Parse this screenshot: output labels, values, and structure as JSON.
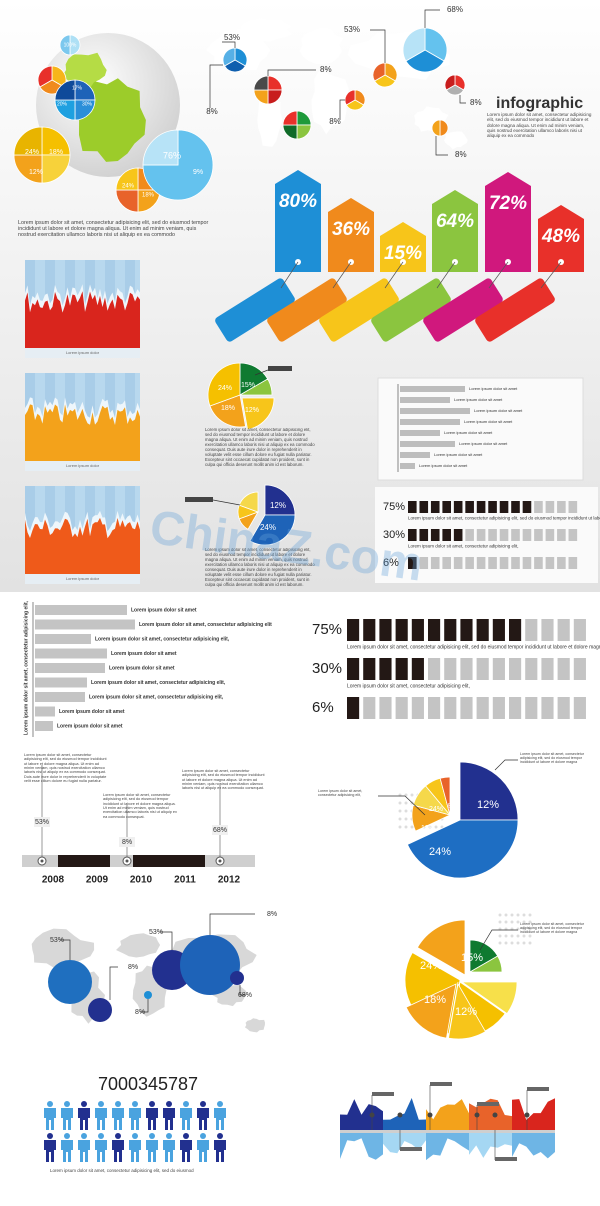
{
  "header": {
    "title": "infographic",
    "text": "Lorem ipsum dolor sit amet, consectetur adipisicing elit, sed do eiusmod tempor incididunt ut labore et dolore magna aliqua. Ut enim ad minim veniam, quis nostrud exercitation ullamco laboris nisi ut aliquip ex ea commodo"
  },
  "globe": {
    "labels": [
      "100%",
      "17%",
      "30%",
      "20%",
      "24%",
      "18%",
      "12%",
      "24%",
      "18%",
      "76%",
      "9%"
    ]
  },
  "map_top": {
    "labels": [
      "53%",
      "8%",
      "8%",
      "53%",
      "8%",
      "68%",
      "8%",
      "8%"
    ]
  },
  "tags": [
    "80%",
    "36%",
    "15%",
    "64%",
    "72%",
    "48%"
  ],
  "intro_text": "Lorem ipsum dolor sit amet, consectetur adipisicing elit, sed do eiusmod tempor incididunt ut labore et dolore magna aliqua. Ut enim ad minim veniam, quis nostrud exercitation ullamco laboris nisi ut aliquip ex ea commodo",
  "area_captions": [
    "Lorem ipsum dolor",
    "Lorem ipsum dolor",
    "Lorem ipsum dolor"
  ],
  "pie_mid": {
    "labels": [
      "24%",
      "15%",
      "18%",
      "12%"
    ],
    "text": "Lorem ipsum dolor sit amet, consectetur adipisicing elit, sed do eiusmod tempor incididunt ut labore et dolore magna aliqua. Ut enim ad minim veniam, quis nostrud exercitation ullamco laboris nisi ut aliquip ex ea commodo consequat. Duis aute irure dolor in reprehenderit in voluptate velit esse cillum dolore eu fugiat nulla pariatur. Excepteur sint occaecat cupidatat non proident, sunt in culpa qui officia deserunt mollit anim id est laborum."
  },
  "pie_mid2": {
    "labels": [
      "12%",
      "24%"
    ],
    "text": "Lorem ipsum dolor sit amet, consectetur adipisicing elit, sed do eiusmod tempor incididunt ut labore et dolore magna aliqua. Ut enim ad minim veniam, quis nostrud exercitation ullamco laboris nisi ut aliquip ex ea commodo consequat. Duis aute irure dolor in reprehenderit in voluptate velit esse cillum dolore eu fugiat nulla pariatur. Excepteur sint occaecat cupidatat non proident, sunt in culpa qui officia deserunt mollit anim id est laborum."
  },
  "bars_small": {
    "labels": [
      "Lorem ipsum dolor sit amet",
      "Lorem ipsum dolor sit amet",
      "Lorem ipsum dolor sit amet",
      "Lorem ipsum dolor sit amet",
      "Lorem ipsum dolor sit amet",
      "Lorem ipsum dolor sit amet",
      "Lorem ipsum dolor sit amet",
      "Lorem ipsum dolor sit amet"
    ]
  },
  "progress_small": {
    "rows": [
      {
        "label": "75%",
        "text": "Lorem ipsum dolor sit amet, consectetur adipisicing elit, sed do eiusmod tempor incididunt ut labore et dolore magna"
      },
      {
        "label": "30%",
        "text": "Lorem ipsum dolor sit amet, consectetur adipisicing elit,"
      },
      {
        "label": "6%"
      }
    ]
  },
  "watermark": "ChinaZ.com",
  "hbars": {
    "axis_label": "Lorem ipsum dolor sit amet, consectetur adipisicing elit,",
    "labels": [
      "Lorem ipsum dolor sit amet",
      "Lorem ipsum dolor sit amet, consectetur adipisicing elit",
      "Lorem ipsum dolor sit amet, consectetur adipisicing elit,",
      "Lorem ipsum dolor sit amet",
      "Lorem ipsum dolor sit amet",
      "Lorem ipsum dolor sit amet, consectetur adipisicing elit,",
      "Lorem ipsum dolor sit amet, consectetur adipisicing elit,",
      "Lorem ipsum dolor sit amet",
      "Lorem ipsum dolor sit amet"
    ]
  },
  "progress": {
    "rows": [
      {
        "label": "75%",
        "text": "Lorem ipsum dolor sit amet, consectetur adipisicing elit, sed do eiusmod tempor incididunt ut labore et dolore magna"
      },
      {
        "label": "30%",
        "text": "Lorem ipsum dolor sit amet, consectetur adipisicing elit,"
      },
      {
        "label": "6%"
      }
    ]
  },
  "timeline": {
    "years": [
      "2008",
      "2009",
      "2010",
      "2011",
      "2012"
    ],
    "markers": [
      "53%",
      "8%",
      "68%"
    ],
    "notes": [
      "Lorem ipsum dolor sit amet, consectetur adipisicing elit, sed do eiusmod tempor incididunt ut labore et dolore magna aliqua. Ut enim ad minim veniam, quis nostrud exercitation ullamco laboris nisi ut aliquip ex ea commodo consequat. Duis aute irure dolor in reprehenderit in voluptate velit esse cillum dolore eu fugiat nulla pariatur.",
      "Lorem ipsum dolor sit amet, consectetur adipisicing elit, sed do eiusmod tempor incididunt ut labore et dolore magna aliqua. Ut enim ad minim veniam, quis nostrud exercitation ullamco laboris nisi ut aliquip ex ea commodo consequat.",
      "Lorem ipsum dolor sit amet, consectetur adipisicing elit, sed do eiusmod tempor incididunt ut labore et dolore magna aliqua. Ut enim ad minim veniam, quis nostrud exercitation ullamco laboris nisi ut aliquip ex ea commodo consequat."
    ]
  },
  "pie_blue": {
    "labels": [
      "12%",
      "24%",
      "18%",
      "24%",
      "8%"
    ],
    "notes": [
      "Lorem ipsum dolor sit amet, consectetur adipisicing elit,",
      "Lorem ipsum dolor sit amet, consectetur adipisicing elit, sed do eiusmod tempor incididunt ut labore et dolore magna"
    ]
  },
  "map_circles": {
    "labels": [
      "53%",
      "8%",
      "53%",
      "8%",
      "68%",
      "8%"
    ]
  },
  "pie_yellow": {
    "labels": [
      "24%",
      "15%",
      "18%",
      "12%"
    ],
    "note": "Lorem ipsum dolor sit amet, consectetur adipisicing elit, sed do eiusmod tempor incididunt ut labore et dolore magna"
  },
  "people": {
    "number": "7000345787",
    "caption": "Lorem ipsum dolor sit amet, consectetur adipisicing elit, sed do eiusmod"
  }
}
